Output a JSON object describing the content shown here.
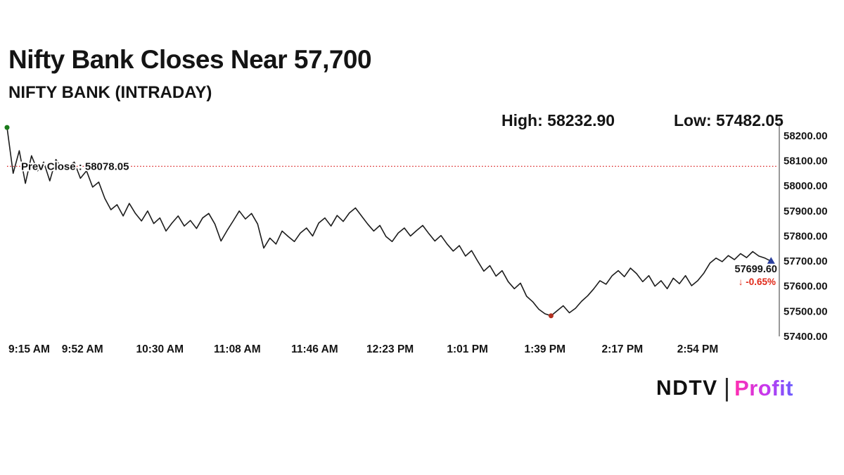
{
  "header": {
    "title": "Nifty Bank Closes Near 57,700",
    "subtitle": "NIFTY BANK (INTRADAY)",
    "high_label": "High: 58232.90",
    "low_label": "Low: 57482.05"
  },
  "chart_data": {
    "type": "line",
    "title": "NIFTY BANK (INTRADAY)",
    "xlabel": "",
    "ylabel": "",
    "ylim": [
      57400,
      58250
    ],
    "x_axis_minutes_range": [
      0,
      378
    ],
    "step_min": 3,
    "x_tick_minutes": [
      0,
      37,
      75,
      113,
      151,
      188,
      226,
      264,
      302,
      339
    ],
    "x_tick_labels": [
      "9:15 AM",
      "9:52 AM",
      "10:30 AM",
      "11:08 AM",
      "11:46 AM",
      "12:23 PM",
      "1:01 PM",
      "1:39 PM",
      "2:17 PM",
      "2:54 PM"
    ],
    "y_tick_values": [
      58200,
      58100,
      58000,
      57900,
      57800,
      57700,
      57600,
      57500,
      57400
    ],
    "y_tick_labels": [
      "58200.00",
      "58100.00",
      "58000.00",
      "57900.00",
      "57800.00",
      "57700.00",
      "57600.00",
      "57500.00",
      "57400.00"
    ],
    "values": [
      58232.9,
      58050,
      58140,
      58010,
      58120,
      58060,
      58095,
      58020,
      58105,
      58070,
      58078,
      58095,
      58030,
      58060,
      57995,
      58015,
      57950,
      57905,
      57925,
      57880,
      57930,
      57890,
      57860,
      57900,
      57850,
      57872,
      57820,
      57852,
      57880,
      57840,
      57862,
      57830,
      57872,
      57890,
      57848,
      57780,
      57822,
      57860,
      57900,
      57868,
      57890,
      57848,
      57752,
      57792,
      57768,
      57820,
      57798,
      57778,
      57812,
      57832,
      57800,
      57852,
      57872,
      57840,
      57882,
      57858,
      57892,
      57912,
      57880,
      57848,
      57820,
      57842,
      57798,
      57778,
      57812,
      57832,
      57800,
      57822,
      57842,
      57810,
      57780,
      57802,
      57768,
      57740,
      57762,
      57720,
      57742,
      57700,
      57660,
      57682,
      57640,
      57662,
      57618,
      57590,
      57612,
      57560,
      57538,
      57508,
      57490,
      57482.05,
      57502,
      57522,
      57494,
      57512,
      57540,
      57562,
      57590,
      57622,
      57608,
      57642,
      57662,
      57638,
      57672,
      57650,
      57618,
      57642,
      57600,
      57622,
      57590,
      57632,
      57610,
      57642,
      57602,
      57622,
      57652,
      57692,
      57712,
      57698,
      57722,
      57706,
      57730,
      57714,
      57738,
      57720,
      57712,
      57699.6
    ],
    "prev_close": {
      "label": "Prev Close : 58078.05",
      "value": 58078.05
    },
    "last": {
      "price_label": "57699.60",
      "change_label": "↓ -0.65%",
      "value": 57699.6
    },
    "high": 58232.9,
    "low": 57482.05,
    "colors": {
      "line": "#1c1c1c",
      "prev_close_line": "#d40000",
      "change_text": "#e02818",
      "start_marker": "#1a7a1a",
      "low_marker": "#b23020",
      "end_marker": "#2a3f9e",
      "axis": "#333333",
      "tick_text": "#141414"
    },
    "legend": "none",
    "grid": "off"
  },
  "footer": {
    "brand_left": "NDTV",
    "brand_divider": "|",
    "brand_right": "Profit"
  }
}
